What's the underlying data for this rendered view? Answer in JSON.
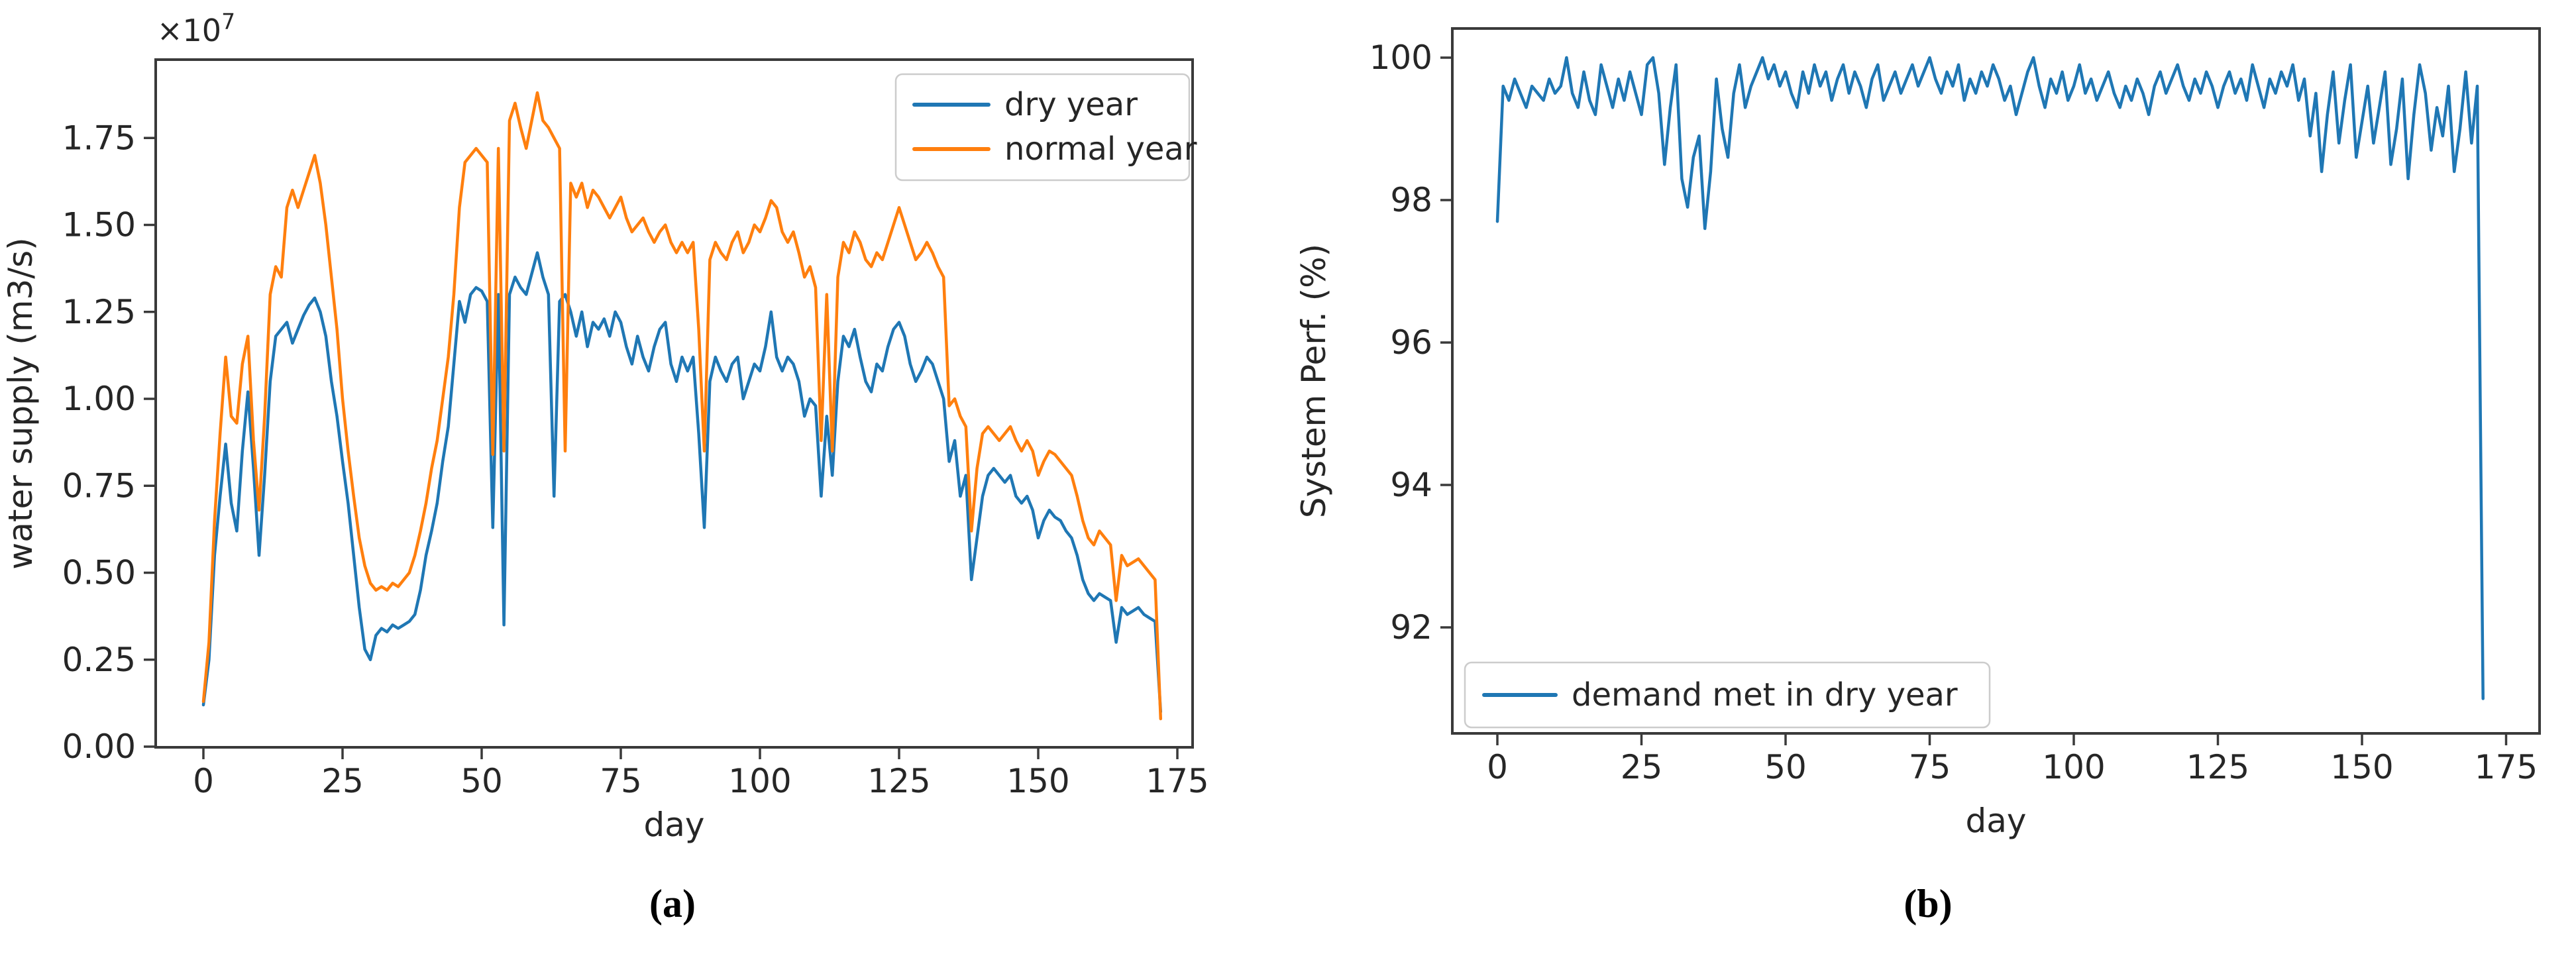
{
  "figure": {
    "caption_a": "(a)",
    "caption_b": "(b)"
  },
  "colors": {
    "dry_year_blue": "#1f77b4",
    "normal_year_orange": "#ff7f0e",
    "axis_gray": "#3a3a3a",
    "text_dark": "#262626",
    "legend_border": "#cccccc",
    "background": "#ffffff"
  },
  "chart_data": [
    {
      "id": "a",
      "type": "line",
      "title": "",
      "xlabel": "day",
      "ylabel": "water supply (m3/s)",
      "offset_text": {
        "base": "×10",
        "exp": "7"
      },
      "xlim": [
        -8.6,
        177.7
      ],
      "ylim": [
        0,
        1.975
      ],
      "grid": false,
      "xticks": [
        0,
        25,
        50,
        75,
        100,
        125,
        150,
        175
      ],
      "yticks": [
        {
          "v": 0.0,
          "label": "0.00"
        },
        {
          "v": 0.25,
          "label": "0.25"
        },
        {
          "v": 0.5,
          "label": "0.50"
        },
        {
          "v": 0.75,
          "label": "0.75"
        },
        {
          "v": 1.0,
          "label": "1.00"
        },
        {
          "v": 1.25,
          "label": "1.25"
        },
        {
          "v": 1.5,
          "label": "1.50"
        },
        {
          "v": 1.75,
          "label": "1.75"
        }
      ],
      "legend": {
        "position": "top-right",
        "entries": [
          {
            "label": "dry year",
            "color_key": "dry_year_blue"
          },
          {
            "label": "normal year",
            "color_key": "normal_year_orange"
          }
        ]
      },
      "series": [
        {
          "name": "dry year",
          "color_key": "dry_year_blue",
          "x_start": 0,
          "x_step": 1,
          "y": [
            0.12,
            0.25,
            0.55,
            0.72,
            0.87,
            0.7,
            0.62,
            0.85,
            1.02,
            0.8,
            0.55,
            0.78,
            1.05,
            1.18,
            1.2,
            1.22,
            1.16,
            1.2,
            1.24,
            1.27,
            1.29,
            1.25,
            1.18,
            1.05,
            0.95,
            0.82,
            0.7,
            0.55,
            0.4,
            0.28,
            0.25,
            0.32,
            0.34,
            0.33,
            0.35,
            0.34,
            0.35,
            0.36,
            0.38,
            0.45,
            0.55,
            0.62,
            0.7,
            0.82,
            0.92,
            1.1,
            1.28,
            1.22,
            1.3,
            1.32,
            1.31,
            1.28,
            0.63,
            1.3,
            0.35,
            1.3,
            1.35,
            1.32,
            1.3,
            1.36,
            1.42,
            1.35,
            1.3,
            0.72,
            1.28,
            1.3,
            1.25,
            1.18,
            1.25,
            1.15,
            1.22,
            1.2,
            1.23,
            1.18,
            1.25,
            1.22,
            1.15,
            1.1,
            1.18,
            1.12,
            1.08,
            1.15,
            1.2,
            1.22,
            1.1,
            1.05,
            1.12,
            1.08,
            1.12,
            0.9,
            0.63,
            1.05,
            1.12,
            1.08,
            1.05,
            1.1,
            1.12,
            1.0,
            1.05,
            1.1,
            1.08,
            1.15,
            1.25,
            1.12,
            1.08,
            1.12,
            1.1,
            1.05,
            0.95,
            1.0,
            0.98,
            0.72,
            0.95,
            0.78,
            1.05,
            1.18,
            1.15,
            1.2,
            1.12,
            1.05,
            1.02,
            1.1,
            1.08,
            1.15,
            1.2,
            1.22,
            1.18,
            1.1,
            1.05,
            1.08,
            1.12,
            1.1,
            1.05,
            1.0,
            0.82,
            0.88,
            0.72,
            0.78,
            0.48,
            0.6,
            0.72,
            0.78,
            0.8,
            0.78,
            0.76,
            0.78,
            0.72,
            0.7,
            0.72,
            0.68,
            0.6,
            0.65,
            0.68,
            0.66,
            0.65,
            0.62,
            0.6,
            0.55,
            0.48,
            0.44,
            0.42,
            0.44,
            0.43,
            0.42,
            0.3,
            0.4,
            0.38,
            0.39,
            0.4,
            0.38,
            0.37,
            0.36,
            0.1
          ]
        },
        {
          "name": "normal year",
          "color_key": "normal_year_orange",
          "x_start": 0,
          "x_step": 1,
          "y": [
            0.13,
            0.3,
            0.65,
            0.9,
            1.12,
            0.95,
            0.93,
            1.1,
            1.18,
            0.88,
            0.68,
            0.95,
            1.3,
            1.38,
            1.35,
            1.55,
            1.6,
            1.55,
            1.6,
            1.65,
            1.7,
            1.62,
            1.5,
            1.35,
            1.2,
            1.0,
            0.85,
            0.72,
            0.6,
            0.52,
            0.47,
            0.45,
            0.46,
            0.45,
            0.47,
            0.46,
            0.48,
            0.5,
            0.55,
            0.62,
            0.7,
            0.8,
            0.88,
            1.0,
            1.12,
            1.3,
            1.55,
            1.68,
            1.7,
            1.72,
            1.7,
            1.68,
            0.84,
            1.72,
            0.85,
            1.8,
            1.85,
            1.78,
            1.72,
            1.8,
            1.88,
            1.8,
            1.78,
            1.75,
            1.72,
            0.85,
            1.62,
            1.58,
            1.62,
            1.55,
            1.6,
            1.58,
            1.55,
            1.52,
            1.55,
            1.58,
            1.52,
            1.48,
            1.5,
            1.52,
            1.48,
            1.45,
            1.48,
            1.5,
            1.45,
            1.42,
            1.45,
            1.42,
            1.45,
            1.2,
            0.85,
            1.4,
            1.45,
            1.42,
            1.4,
            1.45,
            1.48,
            1.42,
            1.45,
            1.5,
            1.48,
            1.52,
            1.57,
            1.55,
            1.48,
            1.45,
            1.48,
            1.42,
            1.35,
            1.38,
            1.32,
            0.88,
            1.3,
            0.85,
            1.35,
            1.45,
            1.42,
            1.48,
            1.45,
            1.4,
            1.38,
            1.42,
            1.4,
            1.45,
            1.5,
            1.55,
            1.5,
            1.45,
            1.4,
            1.42,
            1.45,
            1.42,
            1.38,
            1.35,
            0.98,
            1.0,
            0.95,
            0.92,
            0.62,
            0.8,
            0.9,
            0.92,
            0.9,
            0.88,
            0.9,
            0.92,
            0.88,
            0.85,
            0.88,
            0.85,
            0.78,
            0.82,
            0.85,
            0.84,
            0.82,
            0.8,
            0.78,
            0.72,
            0.65,
            0.6,
            0.58,
            0.62,
            0.6,
            0.58,
            0.42,
            0.55,
            0.52,
            0.53,
            0.54,
            0.52,
            0.5,
            0.48,
            0.08
          ]
        }
      ]
    },
    {
      "id": "b",
      "type": "line",
      "title": "",
      "xlabel": "day",
      "ylabel": "System Perf. (%)",
      "offset_text": null,
      "xlim": [
        -7.8,
        180.8
      ],
      "ylim": [
        90.5,
        100.41
      ],
      "grid": false,
      "xticks": [
        0,
        25,
        50,
        75,
        100,
        125,
        150,
        175
      ],
      "yticks": [
        {
          "v": 92,
          "label": "92"
        },
        {
          "v": 94,
          "label": "94"
        },
        {
          "v": 96,
          "label": "96"
        },
        {
          "v": 98,
          "label": "98"
        },
        {
          "v": 100,
          "label": "100"
        }
      ],
      "legend": {
        "position": "bottom-left",
        "entries": [
          {
            "label": "demand met in dry year",
            "color_key": "dry_year_blue"
          }
        ]
      },
      "series": [
        {
          "name": "demand met in dry year",
          "color_key": "dry_year_blue",
          "x_start": 0,
          "x_step": 1,
          "y": [
            97.7,
            99.6,
            99.4,
            99.7,
            99.5,
            99.3,
            99.6,
            99.5,
            99.4,
            99.7,
            99.5,
            99.6,
            100.0,
            99.5,
            99.3,
            99.8,
            99.4,
            99.2,
            99.9,
            99.6,
            99.3,
            99.7,
            99.4,
            99.8,
            99.5,
            99.2,
            99.9,
            100.0,
            99.5,
            98.5,
            99.3,
            99.9,
            98.3,
            97.9,
            98.6,
            98.9,
            97.6,
            98.4,
            99.7,
            99.0,
            98.6,
            99.5,
            99.9,
            99.3,
            99.6,
            99.8,
            100.0,
            99.7,
            99.9,
            99.6,
            99.8,
            99.5,
            99.3,
            99.8,
            99.5,
            99.9,
            99.6,
            99.8,
            99.4,
            99.7,
            99.9,
            99.5,
            99.8,
            99.6,
            99.3,
            99.7,
            99.9,
            99.4,
            99.6,
            99.8,
            99.5,
            99.7,
            99.9,
            99.6,
            99.8,
            100.0,
            99.7,
            99.5,
            99.8,
            99.6,
            99.9,
            99.4,
            99.7,
            99.5,
            99.8,
            99.6,
            99.9,
            99.7,
            99.4,
            99.6,
            99.2,
            99.5,
            99.8,
            100.0,
            99.6,
            99.3,
            99.7,
            99.5,
            99.8,
            99.4,
            99.6,
            99.9,
            99.5,
            99.7,
            99.4,
            99.6,
            99.8,
            99.5,
            99.3,
            99.6,
            99.4,
            99.7,
            99.5,
            99.2,
            99.6,
            99.8,
            99.5,
            99.7,
            99.9,
            99.6,
            99.4,
            99.7,
            99.5,
            99.8,
            99.6,
            99.3,
            99.6,
            99.8,
            99.5,
            99.7,
            99.4,
            99.9,
            99.6,
            99.3,
            99.7,
            99.5,
            99.8,
            99.6,
            99.9,
            99.4,
            99.7,
            98.9,
            99.5,
            98.4,
            99.2,
            99.8,
            98.8,
            99.4,
            99.9,
            98.6,
            99.1,
            99.6,
            98.8,
            99.3,
            99.8,
            98.5,
            99.0,
            99.7,
            98.3,
            99.2,
            99.9,
            99.5,
            98.7,
            99.3,
            98.9,
            99.6,
            98.4,
            99.0,
            99.8,
            98.8,
            99.6,
            91.0
          ]
        }
      ]
    }
  ]
}
